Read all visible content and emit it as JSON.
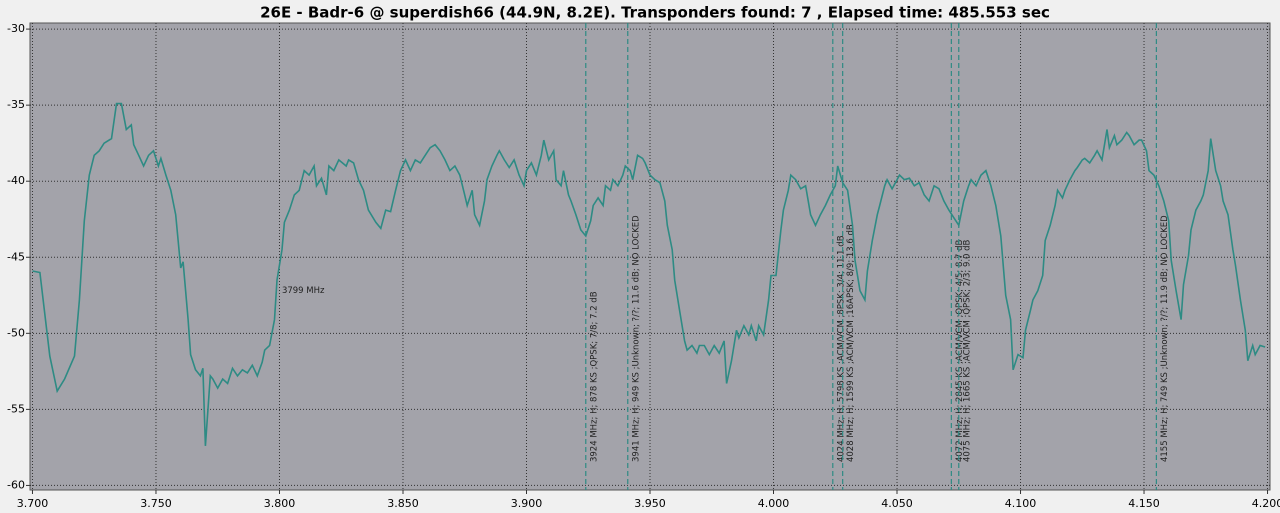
{
  "chart_data": {
    "type": "line",
    "title": "26E - Badr-6 @ superdish66 (44.9N, 8.2E). Transponders found: 7 , Elapsed time: 485.553 sec",
    "color": "#2e8b84",
    "grid": true,
    "xlim": [
      3.699,
      4.201
    ],
    "ylim": [
      -60.3,
      -29.6
    ],
    "xticks": [
      {
        "value": 3.7,
        "label": "3.700"
      },
      {
        "value": 3.75,
        "label": "3.750"
      },
      {
        "value": 3.8,
        "label": "3.800"
      },
      {
        "value": 3.85,
        "label": "3.850"
      },
      {
        "value": 3.9,
        "label": "3.900"
      },
      {
        "value": 3.95,
        "label": "3.950"
      },
      {
        "value": 4.0,
        "label": "4.000"
      },
      {
        "value": 4.05,
        "label": "4.050"
      },
      {
        "value": 4.1,
        "label": "4.100"
      },
      {
        "value": 4.15,
        "label": "4.150"
      },
      {
        "value": 4.2,
        "label": "4.200"
      }
    ],
    "yticks": [
      -30,
      -35,
      -40,
      -45,
      -50,
      -55,
      -60
    ],
    "x": [
      3.7,
      3.703,
      3.707,
      3.71,
      3.713,
      3.717,
      3.719,
      3.721,
      3.723,
      3.725,
      3.727,
      3.729,
      3.732,
      3.734,
      3.736,
      3.738,
      3.74,
      3.741,
      3.743,
      3.745,
      3.747,
      3.749,
      3.751,
      3.752,
      3.754,
      3.756,
      3.758,
      3.76,
      3.761,
      3.763,
      3.764,
      3.766,
      3.768,
      3.769,
      3.77,
      3.772,
      3.773,
      3.775,
      3.777,
      3.779,
      3.781,
      3.783,
      3.785,
      3.787,
      3.789,
      3.791,
      3.793,
      3.794,
      3.796,
      3.798,
      3.799,
      3.801,
      3.802,
      3.804,
      3.806,
      3.808,
      3.81,
      3.812,
      3.814,
      3.815,
      3.817,
      3.819,
      3.82,
      3.822,
      3.824,
      3.827,
      3.828,
      3.83,
      3.832,
      3.834,
      3.836,
      3.839,
      3.841,
      3.843,
      3.845,
      3.847,
      3.849,
      3.851,
      3.853,
      3.855,
      3.857,
      3.859,
      3.861,
      3.863,
      3.865,
      3.867,
      3.869,
      3.871,
      3.873,
      3.875,
      3.876,
      3.878,
      3.879,
      3.881,
      3.883,
      3.884,
      3.886,
      3.888,
      3.889,
      3.891,
      3.893,
      3.895,
      3.897,
      3.899,
      3.9,
      3.902,
      3.904,
      3.906,
      3.907,
      3.909,
      3.911,
      3.912,
      3.914,
      3.915,
      3.917,
      3.918,
      3.92,
      3.922,
      3.924,
      3.926,
      3.927,
      3.929,
      3.931,
      3.932,
      3.934,
      3.935,
      3.937,
      3.939,
      3.94,
      3.942,
      3.943,
      3.945,
      3.947,
      3.948,
      3.95,
      3.952,
      3.954,
      3.956,
      3.957,
      3.959,
      3.96,
      3.962,
      3.964,
      3.965,
      3.967,
      3.969,
      3.97,
      3.972,
      3.974,
      3.976,
      3.978,
      3.98,
      3.981,
      3.983,
      3.985,
      3.986,
      3.988,
      3.99,
      3.991,
      3.993,
      3.994,
      3.996,
      3.998,
      3.999,
      4.001,
      4.003,
      4.004,
      4.006,
      4.007,
      4.009,
      4.011,
      4.013,
      4.015,
      4.017,
      4.019,
      4.021,
      4.023,
      4.025,
      4.026,
      4.028,
      4.03,
      4.032,
      4.033,
      4.035,
      4.037,
      4.038,
      4.04,
      4.042,
      4.043,
      4.045,
      4.046,
      4.048,
      4.05,
      4.051,
      4.053,
      4.055,
      4.057,
      4.059,
      4.061,
      4.063,
      4.065,
      4.067,
      4.069,
      4.071,
      4.073,
      4.075,
      4.077,
      4.079,
      4.08,
      4.082,
      4.084,
      4.086,
      4.088,
      4.09,
      4.092,
      4.094,
      4.096,
      4.097,
      4.099,
      4.101,
      4.102,
      4.104,
      4.105,
      4.107,
      4.109,
      4.11,
      4.112,
      4.114,
      4.115,
      4.117,
      4.118,
      4.12,
      4.122,
      4.123,
      4.125,
      4.126,
      4.128,
      4.13,
      4.131,
      4.133,
      4.135,
      4.136,
      4.138,
      4.139,
      4.141,
      4.143,
      4.144,
      4.146,
      4.148,
      4.149,
      4.151,
      4.152,
      4.154,
      4.156,
      4.158,
      4.16,
      4.161,
      4.163,
      4.165,
      4.166,
      4.168,
      4.169,
      4.171,
      4.173,
      4.174,
      4.176,
      4.177,
      4.179,
      4.181,
      4.182,
      4.184,
      4.186,
      4.187,
      4.189,
      4.191,
      4.192,
      4.194,
      4.195,
      4.197,
      4.199
    ],
    "values": [
      -45.9,
      -46,
      -51.5,
      -53.8,
      -53,
      -51.5,
      -47.8,
      -42.6,
      -39.6,
      -38.3,
      -38,
      -37.5,
      -37.2,
      -34.9,
      -34.9,
      -36.6,
      -36.3,
      -37.6,
      -38.3,
      -39,
      -38.3,
      -38,
      -39,
      -38.5,
      -39.6,
      -40.6,
      -42.2,
      -45.7,
      -45.3,
      -49.1,
      -51.4,
      -52.4,
      -52.8,
      -52.3,
      -57.4,
      -52.8,
      -53,
      -53.6,
      -53,
      -53.3,
      -52.3,
      -52.8,
      -52.4,
      -52.6,
      -52.1,
      -52.8,
      -51.9,
      -51.1,
      -50.8,
      -49.1,
      -46.5,
      -44.5,
      -42.7,
      -41.9,
      -40.9,
      -40.6,
      -39.3,
      -39.6,
      -39,
      -40.3,
      -39.8,
      -40.9,
      -39,
      -39.3,
      -38.6,
      -39,
      -38.6,
      -38.8,
      -39.9,
      -40.6,
      -41.9,
      -42.7,
      -43.1,
      -41.9,
      -42,
      -40.6,
      -39.3,
      -38.6,
      -39.3,
      -38.6,
      -38.8,
      -38.3,
      -37.8,
      -37.6,
      -38,
      -38.6,
      -39.3,
      -39,
      -39.6,
      -40.9,
      -41.6,
      -40.6,
      -42.2,
      -42.9,
      -41.3,
      -39.9,
      -39,
      -38.3,
      -38,
      -38.6,
      -39.1,
      -38.6,
      -39.6,
      -40.3,
      -39.3,
      -38.8,
      -39.6,
      -38.3,
      -37.3,
      -38.6,
      -38,
      -39.9,
      -40.3,
      -39.3,
      -40.9,
      -41.3,
      -42.2,
      -43.2,
      -43.6,
      -42.6,
      -41.6,
      -41.1,
      -41.6,
      -40.3,
      -40.6,
      -39.9,
      -40.3,
      -39.6,
      -39,
      -39.3,
      -39.9,
      -38.3,
      -38.5,
      -38.8,
      -39.6,
      -39.9,
      -40.1,
      -41.3,
      -42.9,
      -44.5,
      -46.5,
      -48.5,
      -50.5,
      -51.1,
      -50.8,
      -51.3,
      -50.8,
      -50.8,
      -51.4,
      -50.8,
      -51.3,
      -50.5,
      -53.3,
      -51.8,
      -49.8,
      -50.3,
      -49.5,
      -50.1,
      -49.5,
      -50.5,
      -49.5,
      -50.1,
      -47.8,
      -46.2,
      -46.2,
      -43.2,
      -41.9,
      -40.6,
      -39.6,
      -39.9,
      -40.5,
      -40.3,
      -42.2,
      -42.9,
      -42.2,
      -41.6,
      -40.9,
      -40.3,
      -39,
      -40.1,
      -40.6,
      -42.9,
      -45.2,
      -47.2,
      -47.8,
      -45.9,
      -43.9,
      -42.2,
      -41.6,
      -40.3,
      -39.9,
      -40.5,
      -39.9,
      -39.6,
      -39.9,
      -39.8,
      -40.3,
      -40.1,
      -40.9,
      -41.3,
      -40.3,
      -40.5,
      -41.3,
      -41.9,
      -42.4,
      -42.9,
      -41.3,
      -40.3,
      -39.9,
      -40.3,
      -39.6,
      -39.3,
      -40.3,
      -41.6,
      -43.6,
      -47.5,
      -49.1,
      -52.4,
      -51.4,
      -51.6,
      -49.8,
      -48.5,
      -47.8,
      -47.2,
      -46.2,
      -43.9,
      -42.9,
      -41.6,
      -40.6,
      -41.1,
      -40.6,
      -39.9,
      -39.3,
      -39.1,
      -38.6,
      -38.5,
      -38.8,
      -38.3,
      -38,
      -38.6,
      -36.6,
      -37.8,
      -37,
      -37.6,
      -37.3,
      -36.8,
      -37,
      -37.6,
      -37.3,
      -37.3,
      -38,
      -39.3,
      -39.6,
      -40.3,
      -41.3,
      -42.6,
      -45.2,
      -47.2,
      -49.1,
      -46.8,
      -44.9,
      -43.2,
      -41.9,
      -41.3,
      -40.9,
      -39.3,
      -37.2,
      -39.3,
      -40.3,
      -41.3,
      -42.2,
      -44.5,
      -45.5,
      -47.8,
      -49.8,
      -51.8,
      -50.8,
      -51.4,
      -50.8,
      -50.9
    ],
    "markers": [
      {
        "x": 3.924,
        "label": "3924 MHz; H; 878 KS ;QPSK; 7/8; 7.2 dB"
      },
      {
        "x": 3.941,
        "label": "3941 MHz; H; 949 KS ;Unknown; ?/?; 11.6 dB; NO LOCKED"
      },
      {
        "x": 4.024,
        "label": "4024 MHz; H; 5798 KS ;ACM/VCM ;8PSK; 3/4; 11.1 dB"
      },
      {
        "x": 4.028,
        "label": "4028 MHz; H; 1599 KS ;ACM/VCM ;16APSK; 8/9; 13.6 dB"
      },
      {
        "x": 4.072,
        "label": "4072 MHz; H; 2845 KS ;ACM/VCM ;QPSK; 4/5; 8.7 dB"
      },
      {
        "x": 4.075,
        "label": "4075 MHz; H; 1665 KS ;ACM/VCM ;QPSK; 2/3; 9.0 dB"
      },
      {
        "x": 4.155,
        "label": "4155 MHz; H; 749 KS ;Unknown; ?/?; 11.9 dB; NO LOCKED"
      }
    ],
    "annotations": [
      {
        "text": "3799 MHz",
        "x": 3.801,
        "y": -47.2
      }
    ]
  }
}
